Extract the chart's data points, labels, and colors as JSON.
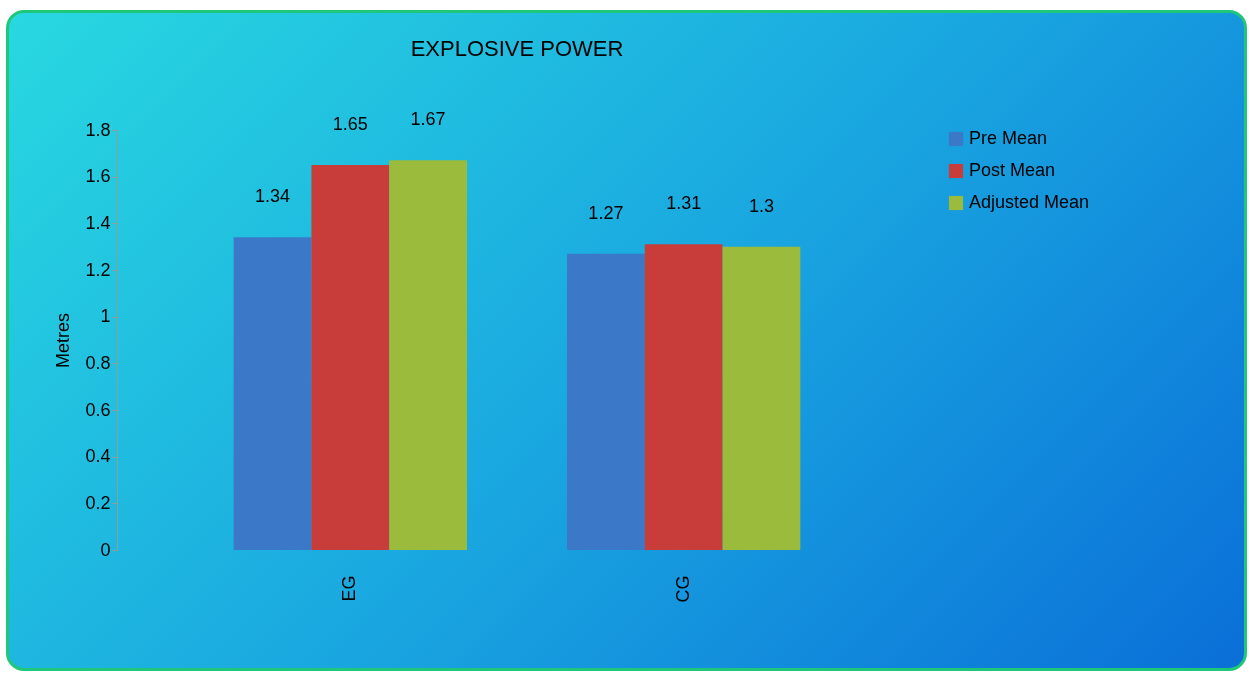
{
  "chart_data": {
    "type": "bar",
    "title": "EXPLOSIVE POWER",
    "ylabel": "Metres",
    "categories": [
      "EG",
      "CG"
    ],
    "series": [
      {
        "name": "Pre Mean",
        "color": "#3b78c8",
        "values": [
          1.34,
          1.27
        ]
      },
      {
        "name": "Post Mean",
        "color": "#c83c3a",
        "values": [
          1.65,
          1.31
        ]
      },
      {
        "name": "Adjusted Mean",
        "color": "#9bbb3c",
        "values": [
          1.67,
          1.3
        ]
      }
    ],
    "ylim": [
      0,
      1.8
    ],
    "yticks": [
      0,
      0.2,
      0.4,
      0.6,
      0.8,
      1,
      1.2,
      1.4,
      1.6,
      1.8
    ],
    "data_labels": true,
    "legend": "right",
    "grid": false
  }
}
